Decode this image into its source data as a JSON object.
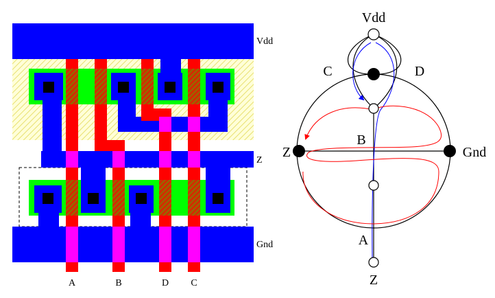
{
  "layout_diagram": {
    "rail_labels": {
      "vdd": "Vdd",
      "z": "Z",
      "gnd": "Gnd"
    },
    "input_labels": [
      "A",
      "B",
      "D",
      "C"
    ],
    "colors": {
      "metal": "#0000ff",
      "poly": "#ff0000",
      "diffusion": "#00ff00",
      "contact": "#000000",
      "via": "#ff00ff",
      "well_hatch": "#f4f090"
    }
  },
  "graph_diagram": {
    "node_labels": {
      "vdd": "Vdd",
      "c": "C",
      "d": "D",
      "z_left": "Z",
      "b": "B",
      "gnd": "Gnd",
      "a": "A",
      "z_bottom": "Z"
    },
    "colors": {
      "euler_path_1": "#0000ff",
      "euler_path_2": "#ff0000",
      "edges": "#000000"
    }
  }
}
